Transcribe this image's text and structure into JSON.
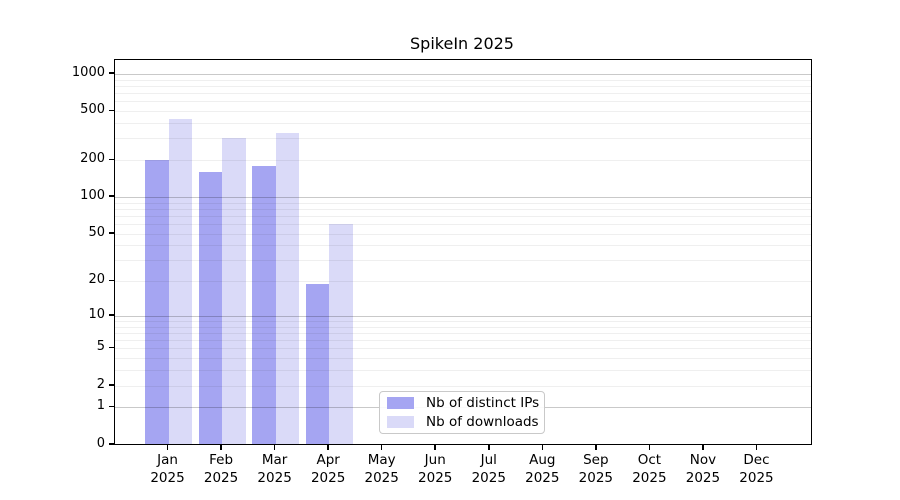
{
  "chart_data": {
    "type": "bar",
    "title": "SpikeIn 2025",
    "xlabel": "",
    "ylabel": "",
    "y_scale": "log10(1+value), linear-to-zero baseline",
    "categories": [
      "Jan 2025",
      "Feb 2025",
      "Mar 2025",
      "Apr 2025",
      "May 2025",
      "Jun 2025",
      "Jul 2025",
      "Aug 2025",
      "Sep 2025",
      "Oct 2025",
      "Nov 2025",
      "Dec 2025"
    ],
    "series": [
      {
        "name": "Nb of distinct IPs",
        "color": "#a5a5f2",
        "values": [
          200,
          160,
          180,
          19,
          0,
          0,
          0,
          0,
          0,
          0,
          0,
          0
        ]
      },
      {
        "name": "Nb of downloads",
        "color": "#dadaf8",
        "values": [
          435,
          300,
          330,
          60,
          0,
          0,
          0,
          0,
          0,
          0,
          0,
          0
        ]
      }
    ],
    "ylim": [
      0,
      1285
    ],
    "yticks": [
      1000,
      500,
      200,
      100,
      50,
      20,
      10,
      5,
      2,
      1,
      0
    ],
    "ytick_labels": [
      "1000",
      "500",
      "200",
      "100",
      "50",
      "20",
      "10",
      "5",
      "2",
      "1",
      "0"
    ],
    "grid": "horizontal, log minor + darker decade major lines, drawn over bars",
    "legend_position": "bottom-center inside plot"
  },
  "colors": {
    "grid_major": "#c9c9c9",
    "grid_minor": "#efefef",
    "axis": "#000000",
    "background": "#ffffff",
    "legend_border": "#c9c9c9"
  },
  "grid_values": {
    "major": [
      1,
      10,
      100,
      1000
    ],
    "minor": [
      2,
      3,
      4,
      5,
      6,
      7,
      8,
      9,
      20,
      30,
      40,
      50,
      60,
      70,
      80,
      90,
      200,
      300,
      400,
      500,
      600,
      700,
      800,
      900
    ]
  }
}
